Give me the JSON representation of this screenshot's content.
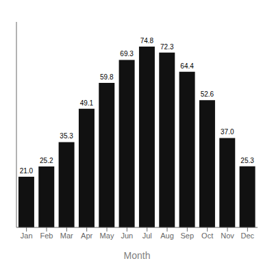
{
  "chart_data": {
    "type": "bar",
    "categories": [
      "Jan",
      "Feb",
      "Mar",
      "Apr",
      "May",
      "Jun",
      "Jul",
      "Aug",
      "Sep",
      "Oct",
      "Nov",
      "Dec"
    ],
    "values": [
      21.0,
      25.2,
      35.3,
      49.1,
      59.8,
      69.3,
      74.8,
      72.3,
      64.4,
      52.6,
      37.0,
      25.3
    ],
    "value_labels": [
      "21.0",
      "25.2",
      "35.3",
      "49.1",
      "59.8",
      "69.3",
      "74.8",
      "72.3",
      "64.4",
      "52.6",
      "37.0",
      "25.3"
    ],
    "data_labels": true,
    "color": "#111111",
    "xlabel": "Month",
    "ylim": [
      0,
      85
    ],
    "tick_labels": "x",
    "grid": false
  }
}
